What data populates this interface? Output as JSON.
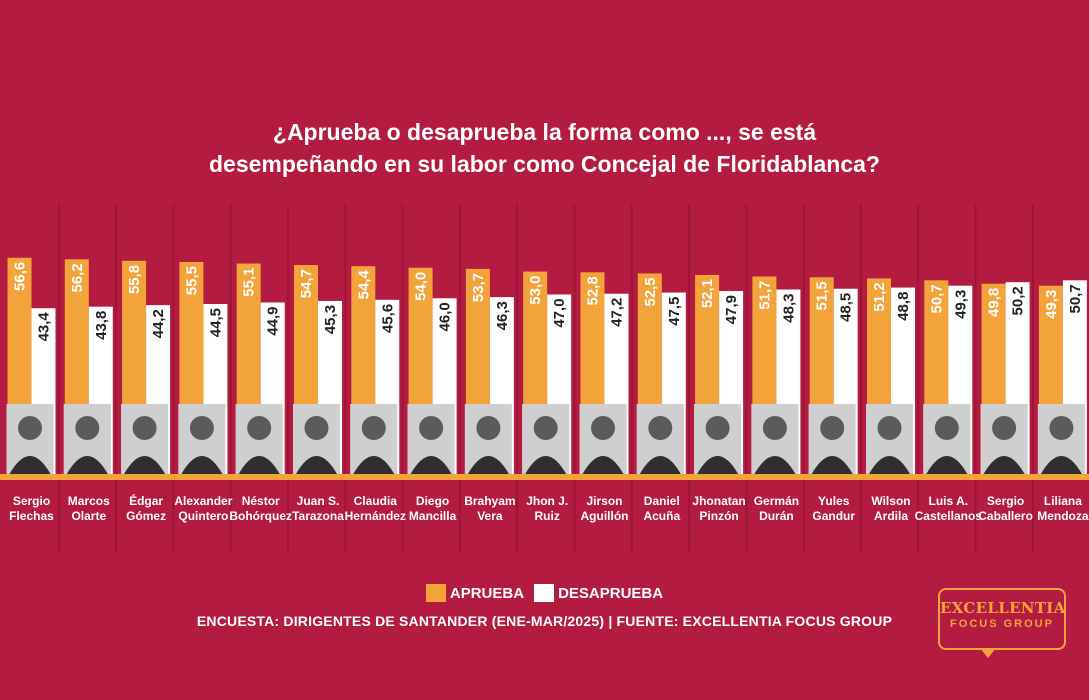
{
  "title_line1": "¿Aprueba o desaprueba la forma como ..., se está",
  "title_line2": "desempeñando en su labor como Concejal de Floridablanca?",
  "legend": {
    "aprueba": "APRUEBA",
    "desaprueba": "DESAPRUEBA"
  },
  "source": "ENCUESTA: DIRIGENTES DE SANTANDER (ENE-MAR/2025) | FUENTE: EXCELLENTIA FOCUS GROUP",
  "logo": {
    "line1": "EXCELLENTIA",
    "line2": "FOCUS GROUP"
  },
  "colors": {
    "background": "#b31c40",
    "aprueba": "#f2a33a",
    "desaprueba": "#ffffff"
  },
  "chart_data": {
    "type": "bar",
    "categories": [
      [
        "Sergio",
        "Flechas"
      ],
      [
        "Marcos",
        "Olarte"
      ],
      [
        "Édgar",
        "Gómez"
      ],
      [
        "Alexander",
        "Quintero"
      ],
      [
        "Néstor",
        "Bohórquez"
      ],
      [
        "Juan S.",
        "Tarazona"
      ],
      [
        "Claudia",
        "Hernández"
      ],
      [
        "Diego",
        "Mancilla"
      ],
      [
        "Brahyam",
        "Vera"
      ],
      [
        "Jhon J.",
        "Ruiz"
      ],
      [
        "Jirson",
        "Aguillón"
      ],
      [
        "Daniel",
        "Acuña"
      ],
      [
        "Jhonatan",
        "Pinzón"
      ],
      [
        "Germán",
        "Durán"
      ],
      [
        "Yules",
        "Gandur"
      ],
      [
        "Wilson",
        "Ardila"
      ],
      [
        "Luis A.",
        "Castellanos"
      ],
      [
        "Sergio",
        "Caballero"
      ],
      [
        "Liliana",
        "Mendoza"
      ]
    ],
    "series": [
      {
        "name": "APRUEBA",
        "values": [
          56.6,
          56.2,
          55.8,
          55.5,
          55.1,
          54.7,
          54.4,
          54.0,
          53.7,
          53.0,
          52.8,
          52.5,
          52.1,
          51.7,
          51.5,
          51.2,
          50.7,
          49.8,
          49.3
        ]
      },
      {
        "name": "DESAPRUEBA",
        "values": [
          43.4,
          43.8,
          44.2,
          44.5,
          44.9,
          45.3,
          45.6,
          46.0,
          46.3,
          47.0,
          47.2,
          47.5,
          47.9,
          48.3,
          48.5,
          48.8,
          49.3,
          50.2,
          50.7
        ]
      }
    ],
    "value_labels": {
      "aprueba": [
        "56,6",
        "56,2",
        "55,8",
        "55,5",
        "55,1",
        "54,7",
        "54,4",
        "54,0",
        "53,7",
        "53,0",
        "52,8",
        "52,5",
        "52,1",
        "51,7",
        "51,5",
        "51,2",
        "50,7",
        "49,8",
        "49,3"
      ],
      "desaprueba": [
        "43,4",
        "43,8",
        "44,2",
        "44,5",
        "44,9",
        "45,3",
        "45,6",
        "46,0",
        "46,3",
        "47,0",
        "47,2",
        "47,5",
        "47,9",
        "48,3",
        "48,5",
        "48,8",
        "49,3",
        "50,2",
        "50,7"
      ]
    },
    "grid": false,
    "legend_position": "bottom-center"
  }
}
